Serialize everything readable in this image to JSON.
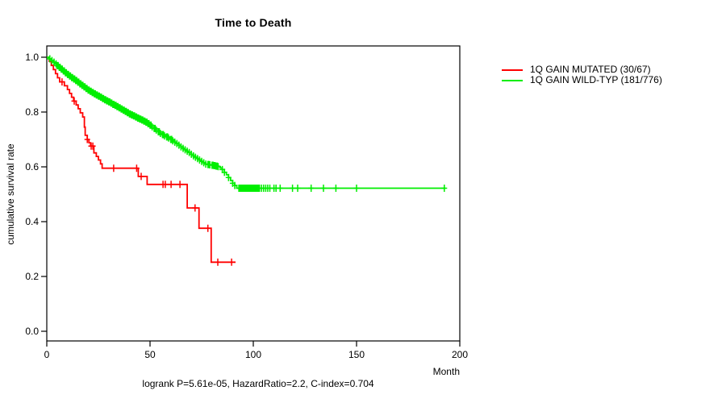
{
  "chart_data": {
    "type": "line",
    "subtype": "kaplan-meier-step",
    "title": "Time to Death",
    "xlabel": "Month",
    "ylabel": "cumulative survival rate",
    "footer": "logrank P=5.61e-05, HazardRatio=2.2, C-index=0.704",
    "xlim": [
      0,
      200
    ],
    "ylim": [
      0.0,
      1.0
    ],
    "xticks": [
      0,
      50,
      100,
      150,
      200
    ],
    "yticks": [
      0.0,
      0.2,
      0.4,
      0.6,
      0.8,
      1.0
    ],
    "grid": false,
    "legend_position": "outside-top-right",
    "axis_color": "#000000",
    "series": [
      {
        "name": "1Q GAIN MUTATED (30/67)",
        "color": "#ff0000",
        "events": "30/67",
        "points": [
          [
            0,
            1.0
          ],
          [
            1.2,
            0.985
          ],
          [
            2.2,
            0.97
          ],
          [
            3.2,
            0.955
          ],
          [
            4.2,
            0.94
          ],
          [
            5.2,
            0.925
          ],
          [
            6.2,
            0.91
          ],
          [
            8.5,
            0.896
          ],
          [
            10.0,
            0.882
          ],
          [
            11.0,
            0.868
          ],
          [
            12.0,
            0.854
          ],
          [
            13.0,
            0.84
          ],
          [
            14.2,
            0.826
          ],
          [
            15.2,
            0.812
          ],
          [
            16.2,
            0.797
          ],
          [
            17.4,
            0.782
          ],
          [
            18.2,
            0.745
          ],
          [
            18.6,
            0.715
          ],
          [
            19.6,
            0.7
          ],
          [
            20.4,
            0.688
          ],
          [
            21.2,
            0.676
          ],
          [
            22.8,
            0.651
          ],
          [
            24.0,
            0.638
          ],
          [
            25.0,
            0.625
          ],
          [
            26.0,
            0.611
          ],
          [
            26.8,
            0.595
          ],
          [
            44.3,
            0.565
          ],
          [
            48.6,
            0.536
          ],
          [
            68.0,
            0.45
          ],
          [
            73.7,
            0.376
          ],
          [
            79.6,
            0.252
          ],
          [
            91.4,
            0.252
          ]
        ],
        "censor_months": [
          7.4,
          13.3,
          19.6,
          21.5,
          22.3,
          32.4,
          43.5,
          45.7,
          56.3,
          57.4,
          60.2,
          64.5,
          71.8,
          78.0,
          82.8,
          89.5
        ],
        "subdivide": false
      },
      {
        "name": "1Q GAIN WILD-TYP (181/776)",
        "color": "#00ee00",
        "events": "181/776",
        "points": [
          [
            0,
            1.0
          ],
          [
            2,
            0.988
          ],
          [
            4,
            0.976
          ],
          [
            6,
            0.963
          ],
          [
            8,
            0.95
          ],
          [
            10,
            0.937
          ],
          [
            12,
            0.926
          ],
          [
            14,
            0.915
          ],
          [
            16,
            0.903
          ],
          [
            18,
            0.892
          ],
          [
            20,
            0.88
          ],
          [
            22,
            0.871
          ],
          [
            24,
            0.862
          ],
          [
            26,
            0.854
          ],
          [
            28,
            0.845
          ],
          [
            30,
            0.837
          ],
          [
            32,
            0.828
          ],
          [
            34,
            0.82
          ],
          [
            36,
            0.811
          ],
          [
            38,
            0.802
          ],
          [
            40,
            0.793
          ],
          [
            42,
            0.786
          ],
          [
            44,
            0.778
          ],
          [
            46,
            0.771
          ],
          [
            48,
            0.763
          ],
          [
            50,
            0.752
          ],
          [
            52,
            0.74
          ],
          [
            54,
            0.728
          ],
          [
            55,
            0.722
          ],
          [
            57,
            0.713
          ],
          [
            59,
            0.705
          ],
          [
            61,
            0.695
          ],
          [
            63,
            0.685
          ],
          [
            65,
            0.673
          ],
          [
            67,
            0.662
          ],
          [
            69,
            0.652
          ],
          [
            71,
            0.64
          ],
          [
            73,
            0.63
          ],
          [
            75,
            0.62
          ],
          [
            77,
            0.61
          ],
          [
            80,
            0.606
          ],
          [
            83,
            0.601
          ],
          [
            84,
            0.596
          ],
          [
            85,
            0.59
          ],
          [
            86,
            0.58
          ],
          [
            87,
            0.571
          ],
          [
            88,
            0.561
          ],
          [
            89,
            0.55
          ],
          [
            90,
            0.54
          ],
          [
            91,
            0.532
          ],
          [
            92,
            0.522
          ],
          [
            193,
            0.522
          ]
        ],
        "censor_months": [
          1.5,
          2.5,
          3.5,
          4.5,
          5,
          5.5,
          6,
          6.5,
          7,
          7.5,
          8,
          8.5,
          9,
          9.5,
          10,
          10.5,
          11,
          11.5,
          12,
          12.5,
          13,
          13.5,
          14,
          14.5,
          15,
          15.5,
          16,
          16.5,
          17,
          17.5,
          18,
          18.5,
          19,
          19.5,
          20,
          20.5,
          21,
          21.5,
          22,
          22.5,
          23,
          23.5,
          24,
          24.5,
          25,
          25.5,
          26,
          26.5,
          27,
          27.5,
          28,
          28.5,
          29,
          29.5,
          30,
          30.5,
          31,
          31.5,
          32,
          32.5,
          33,
          33.5,
          34,
          34.5,
          35,
          35.5,
          36,
          36.5,
          37,
          37.5,
          38,
          38.5,
          39,
          39.5,
          40,
          40.5,
          41,
          41.5,
          42,
          42.5,
          43,
          43.5,
          44,
          44.5,
          45,
          45.5,
          46,
          46.5,
          47,
          47.5,
          48,
          48.5,
          49,
          49.5,
          50,
          50.5,
          51,
          52,
          52.5,
          53,
          54,
          54.5,
          55,
          56,
          56.5,
          57,
          58,
          58.5,
          59,
          60,
          60.5,
          61,
          62,
          63,
          64,
          65,
          66,
          67,
          68,
          69,
          70,
          71,
          72,
          73,
          74,
          75,
          76,
          77,
          78,
          78.5,
          79,
          80,
          80.5,
          81,
          81.5,
          82,
          82.5,
          83,
          85,
          86,
          88,
          90,
          91,
          93,
          93.5,
          94,
          94.5,
          95,
          95.5,
          96,
          96.5,
          97,
          97.5,
          98,
          98.5,
          99,
          99.5,
          100,
          100.5,
          101,
          101.5,
          102,
          102.5,
          103,
          104,
          105,
          106,
          107,
          108,
          110,
          111,
          113,
          119,
          121.5,
          128,
          134,
          140,
          150,
          192.5
        ],
        "subdivide": true
      }
    ]
  }
}
